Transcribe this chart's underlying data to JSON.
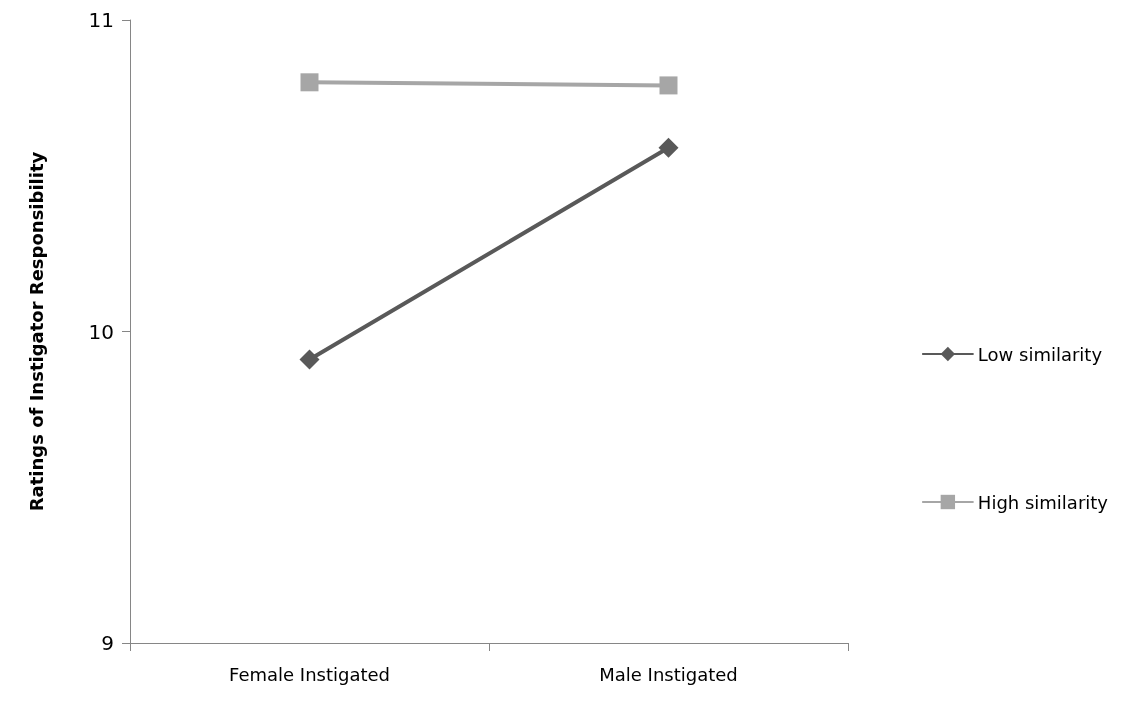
{
  "chart_data": {
    "type": "line",
    "ylabel": "Ratings of Instigator Responsibility",
    "categories": [
      "Female Instigated",
      "Male Instigated"
    ],
    "series": [
      {
        "name": "Low similarity",
        "color": "#595959",
        "marker": "diamond",
        "values": [
          9.91,
          10.59
        ]
      },
      {
        "name": "High similarity",
        "color": "#a6a6a6",
        "marker": "square",
        "values": [
          10.8,
          10.79
        ]
      }
    ],
    "ylim": [
      9,
      11
    ],
    "yticks": [
      9,
      10,
      11
    ],
    "grid": false,
    "legend": "right"
  }
}
